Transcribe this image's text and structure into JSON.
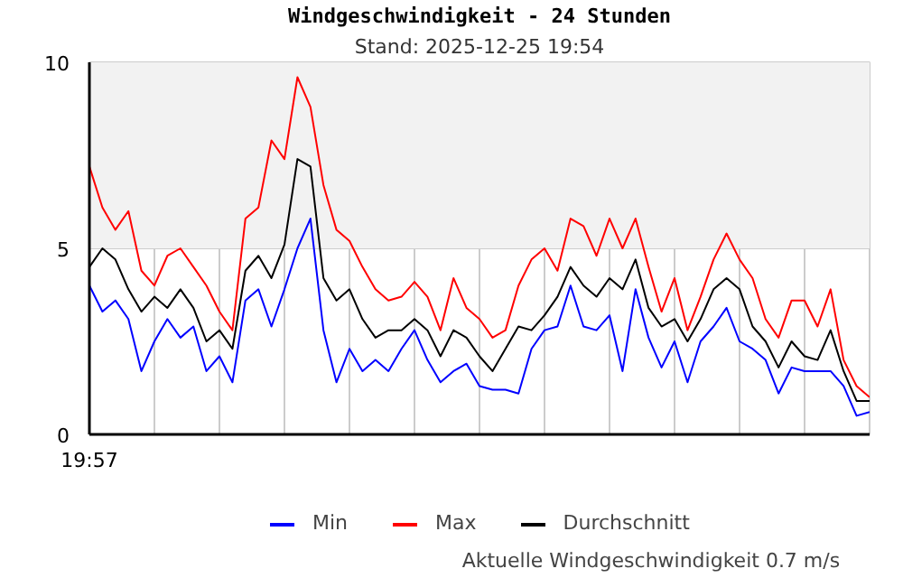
{
  "chart_data": {
    "type": "line",
    "title": "Windgeschwindigkeit - 24 Stunden",
    "subtitle": "Stand: 2025-12-25 19:54",
    "annotations": [
      "19:57",
      "Aktuelle Windgeschwindigkeit 0.7 m/s"
    ],
    "categories": [
      null,
      null,
      null,
      null,
      null,
      null,
      null,
      null,
      null,
      null,
      null,
      null,
      null,
      null,
      null,
      null,
      null,
      null,
      null,
      null,
      null,
      null,
      null,
      null,
      null,
      null,
      null,
      null,
      null,
      null,
      null,
      null,
      null,
      null,
      null,
      null,
      null,
      null,
      null,
      null,
      null,
      null,
      null,
      null,
      null,
      null,
      null,
      null,
      null,
      null,
      null,
      null,
      null,
      null,
      null,
      null,
      null,
      null,
      null,
      null,
      null
    ],
    "ylim": [
      0,
      10
    ],
    "yticks": [
      0,
      5,
      10
    ],
    "grid": true,
    "legend": "bottom",
    "line_style": "solid",
    "bands": [
      {
        "axis": "y",
        "from": 5,
        "to": 10,
        "label": null,
        "color": "#f2f2f2"
      }
    ],
    "series": [
      {
        "name": "Min",
        "color": "#0000ff",
        "values": [
          4.0,
          3.3,
          3.6,
          3.1,
          1.7,
          2.5,
          3.1,
          2.6,
          2.9,
          1.7,
          2.1,
          1.4,
          3.6,
          3.9,
          2.9,
          3.9,
          5.0,
          5.8,
          2.8,
          1.4,
          2.3,
          1.7,
          2.0,
          1.7,
          2.3,
          2.8,
          2.0,
          1.4,
          1.7,
          1.9,
          1.3,
          1.2,
          1.2,
          1.1,
          2.3,
          2.8,
          2.9,
          4.0,
          2.9,
          2.8,
          3.2,
          1.7,
          3.9,
          2.6,
          1.8,
          2.5,
          1.4,
          2.5,
          2.9,
          3.4,
          2.5,
          2.3,
          2.0,
          1.1,
          1.8,
          1.7,
          1.7,
          1.7,
          1.3,
          0.5,
          0.6
        ]
      },
      {
        "name": "Max",
        "color": "#ff0000",
        "values": [
          7.2,
          6.1,
          5.5,
          6.0,
          4.4,
          4.0,
          4.8,
          5.0,
          4.5,
          4.0,
          3.3,
          2.8,
          5.8,
          6.1,
          7.9,
          7.4,
          9.6,
          8.8,
          6.7,
          5.5,
          5.2,
          4.5,
          3.9,
          3.6,
          3.7,
          4.1,
          3.7,
          2.8,
          4.2,
          3.4,
          3.1,
          2.6,
          2.8,
          4.0,
          4.7,
          5.0,
          4.4,
          5.8,
          5.6,
          4.8,
          5.8,
          5.0,
          5.8,
          4.5,
          3.3,
          4.2,
          2.8,
          3.7,
          4.7,
          5.4,
          4.7,
          4.2,
          3.1,
          2.6,
          3.6,
          3.6,
          2.9,
          3.9,
          2.0,
          1.3,
          1.0
        ]
      },
      {
        "name": "Durchschnitt",
        "color": "#000000",
        "values": [
          4.5,
          5.0,
          4.7,
          3.9,
          3.3,
          3.7,
          3.4,
          3.9,
          3.4,
          2.5,
          2.8,
          2.3,
          4.4,
          4.8,
          4.2,
          5.1,
          7.4,
          7.2,
          4.2,
          3.6,
          3.9,
          3.1,
          2.6,
          2.8,
          2.8,
          3.1,
          2.8,
          2.1,
          2.8,
          2.6,
          2.1,
          1.7,
          2.3,
          2.9,
          2.8,
          3.2,
          3.7,
          4.5,
          4.0,
          3.7,
          4.2,
          3.9,
          4.7,
          3.4,
          2.9,
          3.1,
          2.5,
          3.1,
          3.9,
          4.2,
          3.9,
          2.9,
          2.5,
          1.8,
          2.5,
          2.1,
          2.0,
          2.8,
          1.7,
          0.9,
          0.9
        ]
      }
    ]
  }
}
